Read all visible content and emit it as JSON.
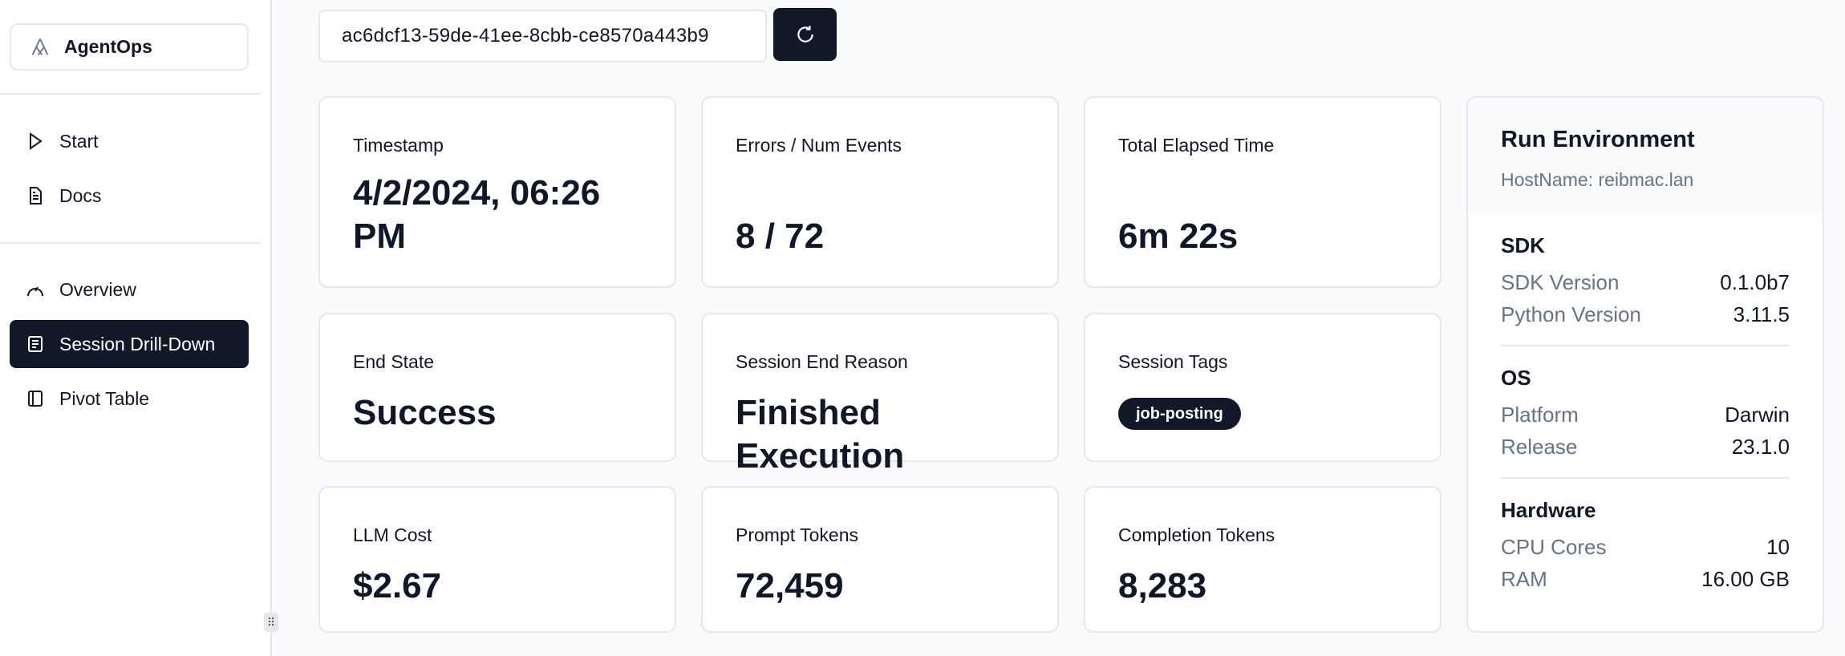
{
  "sidebar": {
    "brand": "AgentOps",
    "items": [
      {
        "label": "Start",
        "icon": "play-icon"
      },
      {
        "label": "Docs",
        "icon": "document-icon"
      },
      {
        "label": "Overview",
        "icon": "gauge-icon"
      },
      {
        "label": "Session Drill-Down",
        "icon": "list-icon",
        "active": true
      },
      {
        "label": "Pivot Table",
        "icon": "panel-icon"
      }
    ]
  },
  "session_input": {
    "value": "ac6dcf13-59de-41ee-8cbb-ce8570a443b9"
  },
  "cards": {
    "timestamp": {
      "label": "Timestamp",
      "value": "4/2/2024, 06:26 PM"
    },
    "errors": {
      "label": "Errors / Num Events",
      "value": "8 / 72"
    },
    "elapsed": {
      "label": "Total Elapsed Time",
      "value": "6m 22s"
    },
    "end_state": {
      "label": "End State",
      "value": "Success"
    },
    "end_reason": {
      "label": "Session End Reason",
      "value": "Finished Execution"
    },
    "tags": {
      "label": "Session Tags",
      "items": [
        "job-posting"
      ]
    },
    "cost": {
      "label": "LLM Cost",
      "value": "$2.67"
    },
    "prompt_tokens": {
      "label": "Prompt Tokens",
      "value": "72,459"
    },
    "completion_tokens": {
      "label": "Completion Tokens",
      "value": "8,283"
    }
  },
  "environment": {
    "title": "Run Environment",
    "hostname": "HostName: reibmac.lan",
    "sections": [
      {
        "title": "SDK",
        "rows": [
          {
            "k": "SDK Version",
            "v": "0.1.0b7"
          },
          {
            "k": "Python Version",
            "v": "3.11.5"
          }
        ]
      },
      {
        "title": "OS",
        "rows": [
          {
            "k": "Platform",
            "v": "Darwin"
          },
          {
            "k": "Release",
            "v": "23.1.0"
          }
        ]
      },
      {
        "title": "Hardware",
        "rows": [
          {
            "k": "CPU Cores",
            "v": "10"
          },
          {
            "k": "RAM",
            "v": "16.00 GB"
          }
        ]
      }
    ]
  },
  "colors": {
    "primary": "#111827",
    "muted": "#64748b",
    "border": "#e5e7eb",
    "background": "#f8fafc"
  }
}
